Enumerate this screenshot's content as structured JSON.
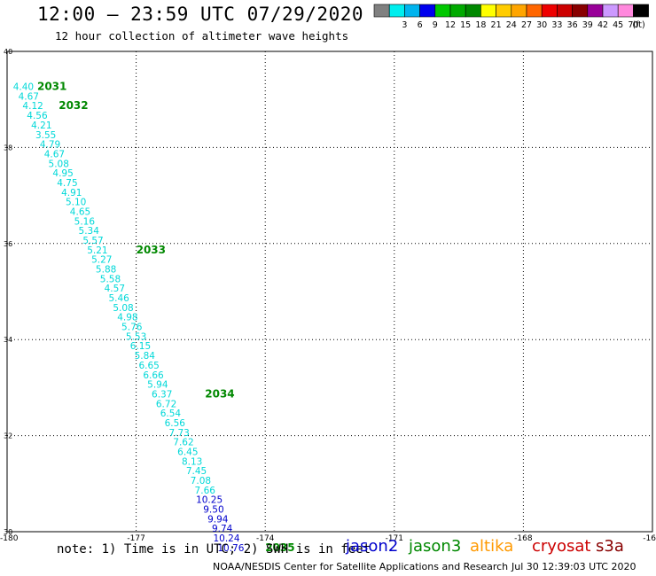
{
  "header": {
    "title": "12:00 – 23:59 UTC 07/29/2020",
    "subtitle": "12 hour collection of altimeter wave heights"
  },
  "legend": {
    "unit": "(ft)",
    "swatches": [
      {
        "label": "",
        "color": "#808080"
      },
      {
        "label": "3",
        "color": "#00eeee"
      },
      {
        "label": "6",
        "color": "#00b4ee"
      },
      {
        "label": "9",
        "color": "#0000ee"
      },
      {
        "label": "12",
        "color": "#00c800"
      },
      {
        "label": "15",
        "color": "#00aa00"
      },
      {
        "label": "18",
        "color": "#008800"
      },
      {
        "label": "21",
        "color": "#ffff00"
      },
      {
        "label": "24",
        "color": "#ffcc00"
      },
      {
        "label": "27",
        "color": "#ffa500"
      },
      {
        "label": "30",
        "color": "#ff6600"
      },
      {
        "label": "33",
        "color": "#ee0000"
      },
      {
        "label": "36",
        "color": "#cc0000"
      },
      {
        "label": "39",
        "color": "#880000"
      },
      {
        "label": "42",
        "color": "#990099"
      },
      {
        "label": "45",
        "color": "#cc99ff"
      },
      {
        "label": "70",
        "color": "#ff88dd"
      },
      {
        "label": "",
        "color": "#000000"
      }
    ]
  },
  "footer": {
    "note": "note: 1) Time is in UTC; 2) SWH is in feet",
    "credit": "NOAA/NESDIS Center for Satellite Applications and Research",
    "timestamp": "Jul 30 12:39:03 UTC 2020",
    "satellites": [
      {
        "name": "jason2",
        "color": "#0000cc"
      },
      {
        "name": "jason3",
        "color": "#008800"
      },
      {
        "name": "altika",
        "color": "#ff9900"
      },
      {
        "name": "cryosat",
        "color": "#cc0000"
      },
      {
        "name": "s3a",
        "color": "#880000"
      }
    ]
  },
  "chart_data": {
    "type": "scatter",
    "xlim": [
      -180,
      -165
    ],
    "ylim": [
      30,
      40
    ],
    "x_ticks": [
      "-180",
      "-177",
      "-174",
      "-171",
      "-168",
      "-16"
    ],
    "y_ticks": [
      "30",
      "32",
      "34",
      "36",
      "38",
      "40"
    ],
    "grid": true,
    "track": {
      "satellite": "jason3",
      "color_cyan": "#00d8d8",
      "color_blue": "#0000cc",
      "points": [
        {
          "lon": -179.62,
          "lat": 39.27,
          "swh": "4.40"
        },
        {
          "lon": -179.5,
          "lat": 39.07,
          "swh": "4.67"
        },
        {
          "lon": -179.4,
          "lat": 38.87,
          "swh": "4.12"
        },
        {
          "lon": -179.3,
          "lat": 38.67,
          "swh": "4.56"
        },
        {
          "lon": -179.2,
          "lat": 38.47,
          "swh": "4.21"
        },
        {
          "lon": -179.1,
          "lat": 38.27,
          "swh": "3.55"
        },
        {
          "lon": -179.0,
          "lat": 38.07,
          "swh": "4.79"
        },
        {
          "lon": -178.9,
          "lat": 37.87,
          "swh": "4.67"
        },
        {
          "lon": -178.8,
          "lat": 37.67,
          "swh": "5.08"
        },
        {
          "lon": -178.7,
          "lat": 37.47,
          "swh": "4.95"
        },
        {
          "lon": -178.6,
          "lat": 37.27,
          "swh": "4.75"
        },
        {
          "lon": -178.5,
          "lat": 37.07,
          "swh": "4.91"
        },
        {
          "lon": -178.4,
          "lat": 36.87,
          "swh": "5.10"
        },
        {
          "lon": -178.3,
          "lat": 36.67,
          "swh": "4.65"
        },
        {
          "lon": -178.2,
          "lat": 36.47,
          "swh": "5.16"
        },
        {
          "lon": -178.1,
          "lat": 36.27,
          "swh": "5.34"
        },
        {
          "lon": -178.0,
          "lat": 36.07,
          "swh": "5.57"
        },
        {
          "lon": -177.9,
          "lat": 35.87,
          "swh": "5.21"
        },
        {
          "lon": -177.8,
          "lat": 35.67,
          "swh": "5.27"
        },
        {
          "lon": -177.7,
          "lat": 35.47,
          "swh": "5.88"
        },
        {
          "lon": -177.6,
          "lat": 35.27,
          "swh": "5.58"
        },
        {
          "lon": -177.5,
          "lat": 35.07,
          "swh": "4.57"
        },
        {
          "lon": -177.4,
          "lat": 34.87,
          "swh": "5.46"
        },
        {
          "lon": -177.3,
          "lat": 34.67,
          "swh": "5.08"
        },
        {
          "lon": -177.2,
          "lat": 34.47,
          "swh": "4.98"
        },
        {
          "lon": -177.1,
          "lat": 34.27,
          "swh": "5.76"
        },
        {
          "lon": -177.0,
          "lat": 34.07,
          "swh": "5.53"
        },
        {
          "lon": -176.9,
          "lat": 33.87,
          "swh": "6.15"
        },
        {
          "lon": -176.8,
          "lat": 33.67,
          "swh": "5.84"
        },
        {
          "lon": -176.7,
          "lat": 33.47,
          "swh": "6.65"
        },
        {
          "lon": -176.6,
          "lat": 33.27,
          "swh": "6.66"
        },
        {
          "lon": -176.5,
          "lat": 33.07,
          "swh": "5.94"
        },
        {
          "lon": -176.4,
          "lat": 32.87,
          "swh": "6.37"
        },
        {
          "lon": -176.3,
          "lat": 32.67,
          "swh": "6.72"
        },
        {
          "lon": -176.2,
          "lat": 32.47,
          "swh": "6.54"
        },
        {
          "lon": -176.1,
          "lat": 32.27,
          "swh": "6.56"
        },
        {
          "lon": -176.0,
          "lat": 32.07,
          "swh": "7.73"
        },
        {
          "lon": -175.9,
          "lat": 31.87,
          "swh": "7.62"
        },
        {
          "lon": -175.8,
          "lat": 31.67,
          "swh": "6.45"
        },
        {
          "lon": -175.7,
          "lat": 31.47,
          "swh": "8.13"
        },
        {
          "lon": -175.6,
          "lat": 31.27,
          "swh": "7.45"
        },
        {
          "lon": -175.5,
          "lat": 31.07,
          "swh": "7.08"
        },
        {
          "lon": -175.4,
          "lat": 30.87,
          "swh": "7.66"
        },
        {
          "lon": -175.3,
          "lat": 30.67,
          "swh": "10.25"
        },
        {
          "lon": -175.2,
          "lat": 30.47,
          "swh": "9.50"
        },
        {
          "lon": -175.1,
          "lat": 30.27,
          "swh": "9.94"
        },
        {
          "lon": -175.0,
          "lat": 30.07,
          "swh": "9.74"
        },
        {
          "lon": -174.9,
          "lat": 29.87,
          "swh": "10.24"
        },
        {
          "lon": -174.8,
          "lat": 29.67,
          "swh": "10.76"
        }
      ]
    },
    "time_labels": [
      {
        "text": "2031",
        "lon": -179.3,
        "lat": 39.27
      },
      {
        "text": "2032",
        "lon": -178.8,
        "lat": 38.87
      },
      {
        "text": "2033",
        "lon": -177.0,
        "lat": 35.87
      },
      {
        "text": "2034",
        "lon": -175.4,
        "lat": 32.87
      },
      {
        "text": "2035",
        "lon": -174.0,
        "lat": 29.67
      }
    ]
  }
}
